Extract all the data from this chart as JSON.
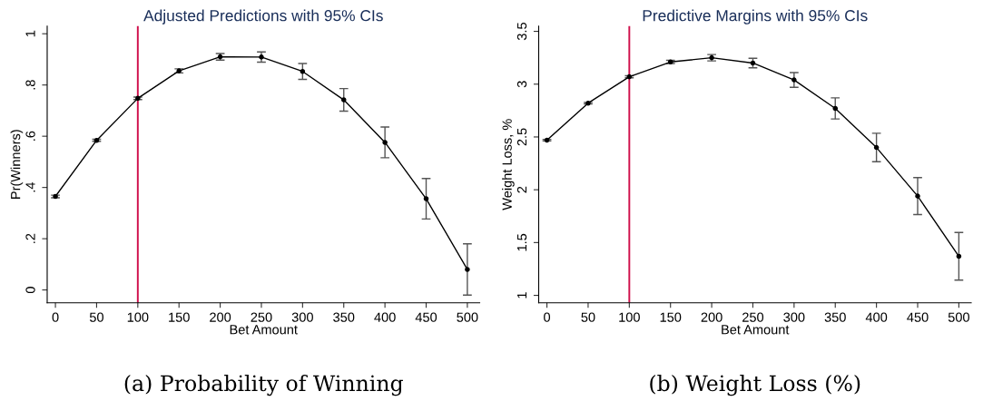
{
  "chart_data": [
    {
      "type": "line",
      "title": "Adjusted Predictions with 95% CIs",
      "xlabel": "Bet Amount",
      "ylabel": "Pr(Winners)",
      "annotations": [
        "(a) Probability of Winning"
      ],
      "x": [
        0,
        50,
        100,
        150,
        200,
        250,
        300,
        350,
        400,
        450,
        500
      ],
      "series": [
        {
          "color": "#000000",
          "values": [
            0.365,
            0.584,
            0.748,
            0.855,
            0.91,
            0.909,
            0.853,
            0.742,
            0.576,
            0.356,
            0.08
          ],
          "errors": [
            0.005,
            0.004,
            0.005,
            0.008,
            0.013,
            0.02,
            0.031,
            0.044,
            0.06,
            0.079,
            0.1
          ]
        }
      ],
      "marker": "circle",
      "line_style": "solid",
      "grid": false,
      "legend": false,
      "xlim": [
        -10,
        515
      ],
      "xticks": [
        0,
        50,
        100,
        150,
        200,
        250,
        300,
        350,
        400,
        450,
        500
      ],
      "ylim": [
        -0.05,
        1.03
      ],
      "yticks": [
        {
          "value": 0,
          "label": "0"
        },
        {
          "value": 0.2,
          "label": ".2"
        },
        {
          "value": 0.4,
          "label": ".4"
        },
        {
          "value": 0.6,
          "label": ".6"
        },
        {
          "value": 0.8,
          "label": ".8"
        },
        {
          "value": 1,
          "label": "1"
        }
      ],
      "ref_lines": [
        {
          "axis": "x",
          "value": 100,
          "color": "#d0104c"
        }
      ]
    },
    {
      "type": "line",
      "title": "Predictive Margins with 95% CIs",
      "xlabel": "Bet Amount",
      "ylabel": "Weight Loss, %",
      "annotations": [
        "(b) Weight Loss (%)"
      ],
      "x": [
        0,
        50,
        100,
        150,
        200,
        250,
        300,
        350,
        400,
        450,
        500
      ],
      "series": [
        {
          "color": "#000000",
          "values": [
            2.47,
            2.82,
            3.07,
            3.21,
            3.25,
            3.2,
            3.04,
            2.77,
            2.4,
            1.94,
            1.37
          ],
          "errors": [
            0.007,
            0.007,
            0.01,
            0.015,
            0.03,
            0.045,
            0.07,
            0.1,
            0.135,
            0.175,
            0.225
          ]
        }
      ],
      "marker": "circle",
      "line_style": "solid",
      "grid": false,
      "legend": false,
      "xlim": [
        -10,
        515
      ],
      "xticks": [
        0,
        50,
        100,
        150,
        200,
        250,
        300,
        350,
        400,
        450,
        500
      ],
      "ylim": [
        0.93,
        3.55
      ],
      "yticks": [
        1,
        1.5,
        2,
        2.5,
        3,
        3.5
      ],
      "ref_lines": [
        {
          "axis": "x",
          "value": 100,
          "color": "#d0104c"
        }
      ]
    }
  ]
}
